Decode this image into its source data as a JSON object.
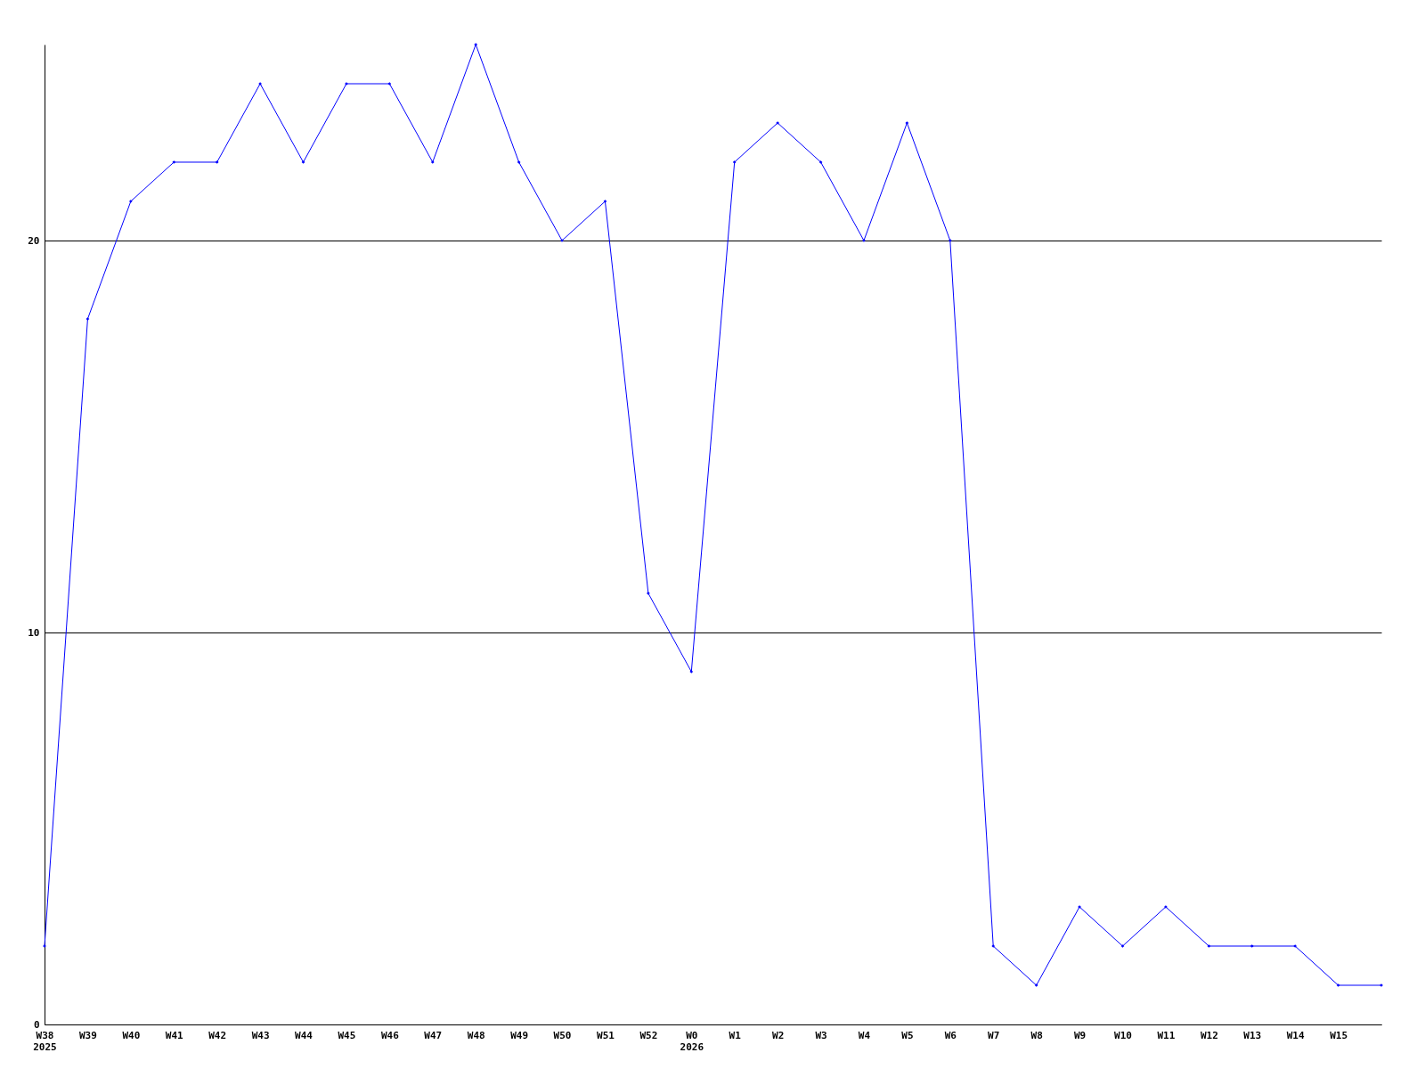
{
  "chart_data": {
    "type": "line",
    "categories": [
      "W38\n2025",
      "W39",
      "W40",
      "W41",
      "W42",
      "W43",
      "W44",
      "W45",
      "W46",
      "W47",
      "W48",
      "W49",
      "W50",
      "W51",
      "W52",
      "W0\n2026",
      "W1",
      "W2",
      "W3",
      "W4",
      "W5",
      "W6",
      "W7",
      "W8",
      "W9",
      "W10",
      "W11",
      "W12",
      "W13",
      "W14",
      "W15",
      null
    ],
    "series": [
      {
        "color": "#0000ff",
        "values": [
          2,
          18,
          21,
          22,
          22,
          24,
          22,
          24,
          24,
          22,
          25,
          22,
          20,
          21,
          11,
          9,
          22,
          23,
          22,
          20,
          23,
          20,
          2,
          1,
          3,
          2,
          3,
          2,
          2,
          2,
          1,
          1
        ]
      }
    ],
    "ylim": [
      0,
      25
    ],
    "yticks": [
      0,
      10,
      20
    ],
    "grid": "y",
    "legend": false,
    "marker": "diamond",
    "line_style": "solid"
  }
}
